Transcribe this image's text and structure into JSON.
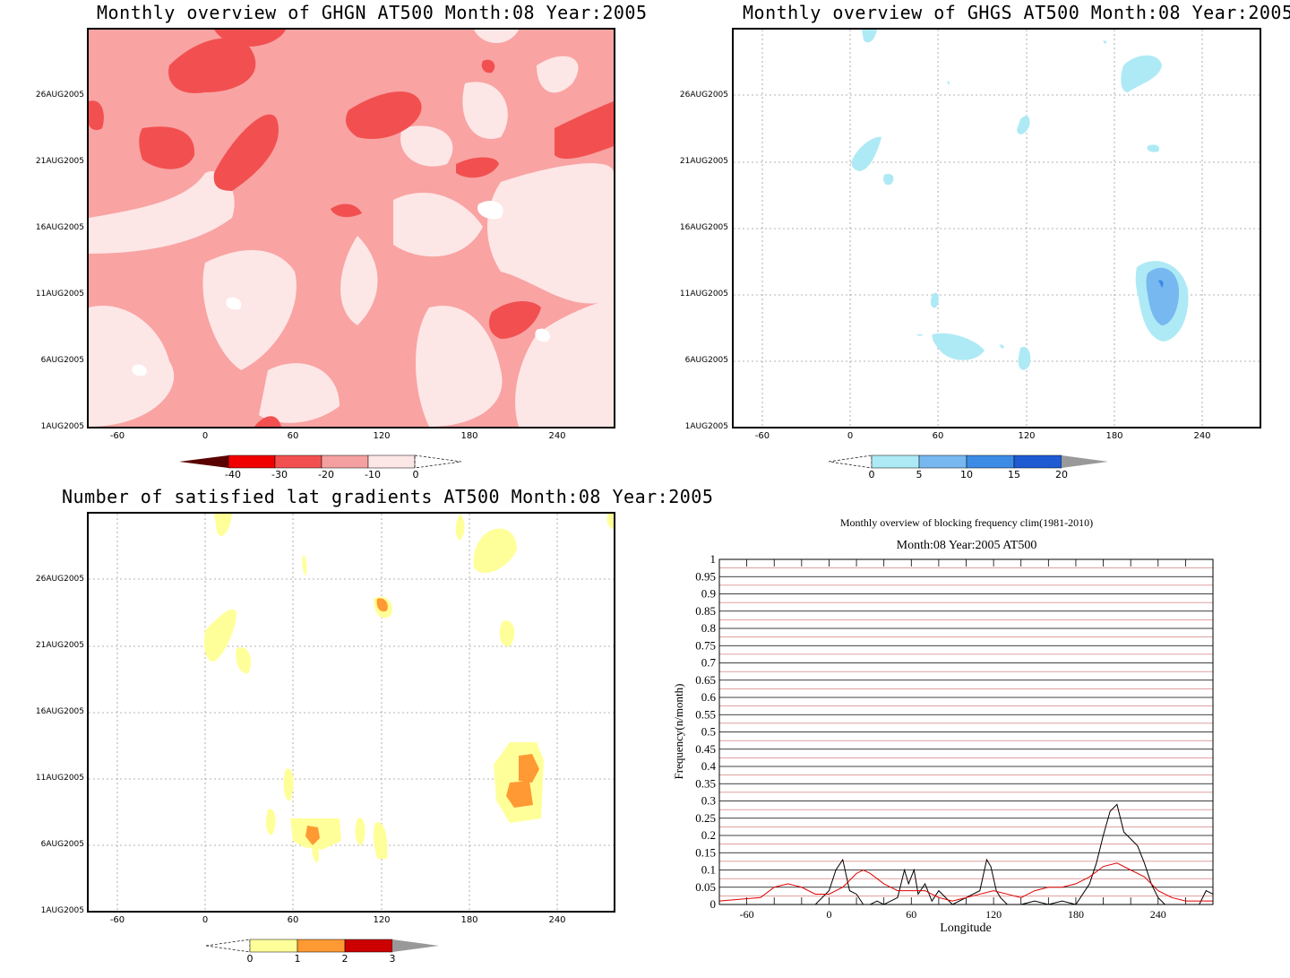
{
  "chart_data": [
    {
      "type": "heatmap",
      "title": "Monthly overview of GHGN AT500 Month:08 Year:2005",
      "x_ticks": [
        "-60",
        "0",
        "60",
        "120",
        "180",
        "240"
      ],
      "y_ticks": [
        "1AUG2005",
        "6AUG2005",
        "11AUG2005",
        "16AUG2005",
        "21AUG2005",
        "26AUG2005"
      ],
      "xlim": [
        -80,
        280
      ],
      "colorbar": {
        "levels": [
          "-40",
          "-30",
          "-20",
          "-10",
          "0"
        ],
        "colors": [
          "#5a0000",
          "#f00000",
          "#f25050",
          "#f5a0a0",
          "#fde6e6"
        ]
      },
      "grid": true
    },
    {
      "type": "heatmap",
      "title": "Monthly overview of GHGS AT500 Month:08 Year:2005",
      "x_ticks": [
        "-60",
        "0",
        "60",
        "120",
        "180",
        "240"
      ],
      "y_ticks": [
        "1AUG2005",
        "6AUG2005",
        "11AUG2005",
        "16AUG2005",
        "21AUG2005",
        "26AUG2005"
      ],
      "xlim": [
        -80,
        280
      ],
      "colorbar": {
        "levels": [
          "0",
          "5",
          "10",
          "15",
          "20"
        ],
        "colors": [
          "#aeeaf5",
          "#78b8f0",
          "#3c8ce6",
          "#1e5ad2",
          "#999999"
        ]
      },
      "grid": true
    },
    {
      "type": "heatmap",
      "title": "Number of satisfied lat gradients AT500 Month:08 Year:2005",
      "x_ticks": [
        "-60",
        "0",
        "60",
        "120",
        "180",
        "240"
      ],
      "y_ticks": [
        "1AUG2005",
        "6AUG2005",
        "11AUG2005",
        "16AUG2005",
        "21AUG2005",
        "26AUG2005"
      ],
      "xlim": [
        -80,
        280
      ],
      "colorbar": {
        "levels": [
          "0",
          "1",
          "2",
          "3"
        ],
        "colors": [
          "#ffff99",
          "#ff9933",
          "#cc0000",
          "#999999"
        ]
      },
      "grid": true
    },
    {
      "type": "line",
      "title": "Monthly overview of blocking frequency clim(1981-2010)",
      "subtitle": "Month:08 Year:2005  AT500",
      "xlabel": "Longitude",
      "ylabel": "Frequency(n/month)",
      "xlim": [
        -80,
        280
      ],
      "ylim": [
        0,
        1
      ],
      "x_ticks": [
        "-60",
        "0",
        "60",
        "120",
        "180",
        "240"
      ],
      "y_ticks": [
        "0",
        "0.05",
        "0.1",
        "0.15",
        "0.2",
        "0.25",
        "0.3",
        "0.35",
        "0.4",
        "0.45",
        "0.5",
        "0.55",
        "0.6",
        "0.65",
        "0.7",
        "0.75",
        "0.8",
        "0.85",
        "0.9",
        "0.95",
        "1"
      ],
      "grid": true,
      "series": [
        {
          "color": "#000000",
          "x": [
            -80,
            -10,
            0,
            5,
            10,
            15,
            20,
            25,
            30,
            35,
            40,
            50,
            55,
            58,
            62,
            65,
            70,
            75,
            80,
            90,
            100,
            110,
            115,
            118,
            122,
            125,
            130,
            140,
            150,
            160,
            170,
            180,
            190,
            195,
            200,
            205,
            210,
            215,
            220,
            225,
            230,
            235,
            240,
            245,
            250,
            260,
            270,
            275,
            280
          ],
          "y": [
            0,
            0,
            0.04,
            0.1,
            0.13,
            0.04,
            0.03,
            0,
            0,
            0.01,
            0,
            0.02,
            0.1,
            0.06,
            0.1,
            0.03,
            0.06,
            0.01,
            0.04,
            0,
            0.02,
            0.04,
            0.13,
            0.11,
            0.04,
            0.02,
            0,
            0,
            0.01,
            0,
            0.01,
            0,
            0.06,
            0.12,
            0.2,
            0.27,
            0.29,
            0.21,
            0.19,
            0.17,
            0.12,
            0.06,
            0.02,
            0,
            0,
            0,
            0,
            0.04,
            0.03
          ]
        },
        {
          "color": "#e00000",
          "x": [
            -80,
            -50,
            -40,
            -30,
            -20,
            -10,
            0,
            10,
            20,
            25,
            30,
            40,
            50,
            60,
            70,
            80,
            90,
            100,
            110,
            120,
            130,
            140,
            150,
            160,
            170,
            180,
            190,
            200,
            210,
            220,
            230,
            240,
            250,
            260,
            270,
            280
          ],
          "y": [
            0.01,
            0.02,
            0.05,
            0.06,
            0.05,
            0.03,
            0.03,
            0.05,
            0.09,
            0.1,
            0.09,
            0.06,
            0.04,
            0.04,
            0.04,
            0.02,
            0.01,
            0.02,
            0.03,
            0.04,
            0.03,
            0.02,
            0.04,
            0.05,
            0.05,
            0.06,
            0.08,
            0.11,
            0.12,
            0.1,
            0.08,
            0.04,
            0.02,
            0.01,
            0.01,
            0.01
          ]
        }
      ]
    }
  ]
}
